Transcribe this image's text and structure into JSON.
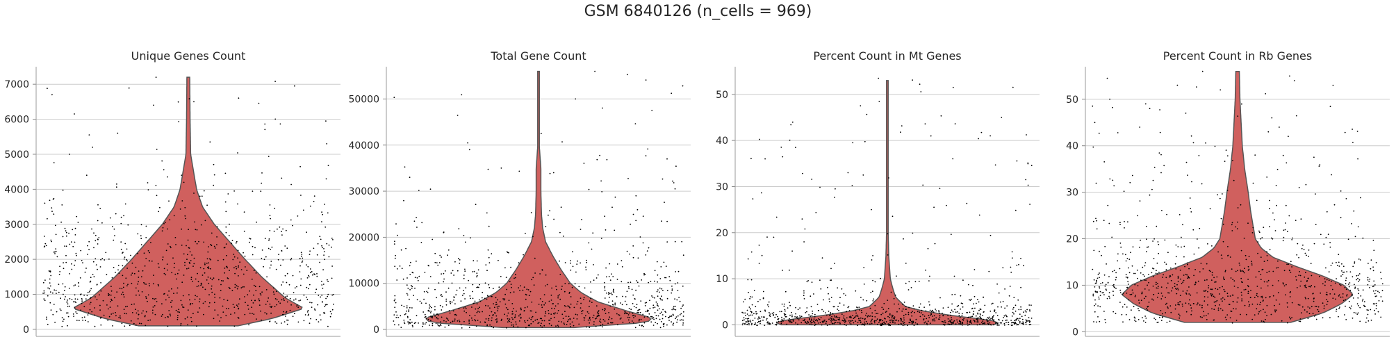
{
  "figure": {
    "suptitle": "GSM 6840126 (n_cells = 969)"
  },
  "colors": {
    "violin_fill": "#d0605e",
    "violin_edge": "#555555",
    "points": "#000000",
    "grid": "#cccccc",
    "text": "#262626"
  },
  "chart_data": [
    {
      "type": "violin",
      "title": "Unique Genes Count",
      "xlabel": "",
      "ylabel": "",
      "ylim": [
        -200,
        7500
      ],
      "yticks": [
        0,
        1000,
        2000,
        3000,
        4000,
        5000,
        6000,
        7000
      ],
      "grid": true,
      "n_points": 969,
      "observed_range": [
        100,
        7200
      ],
      "density_profile": [
        [
          100,
          0.42
        ],
        [
          300,
          0.7
        ],
        [
          600,
          0.98
        ],
        [
          900,
          0.82
        ],
        [
          1500,
          0.62
        ],
        [
          2000,
          0.48
        ],
        [
          2500,
          0.35
        ],
        [
          3000,
          0.22
        ],
        [
          3500,
          0.12
        ],
        [
          4000,
          0.07
        ],
        [
          5000,
          0.02
        ],
        [
          6000,
          0.015
        ],
        [
          7200,
          0.012
        ]
      ],
      "outliers": [
        6950,
        6700,
        6500,
        6400,
        6150,
        5950,
        5600,
        5350,
        5300,
        5200,
        7200,
        5000
      ]
    },
    {
      "type": "violin",
      "title": "Total Gene Count",
      "xlabel": "",
      "ylabel": "",
      "ylim": [
        -1500,
        57000
      ],
      "yticks": [
        0,
        10000,
        20000,
        30000,
        40000,
        50000
      ],
      "grid": true,
      "n_points": 969,
      "observed_range": [
        400,
        56000
      ],
      "density_profile": [
        [
          400,
          0.3
        ],
        [
          1500,
          0.92
        ],
        [
          2500,
          0.96
        ],
        [
          4000,
          0.75
        ],
        [
          6000,
          0.5
        ],
        [
          8000,
          0.36
        ],
        [
          10000,
          0.27
        ],
        [
          13000,
          0.19
        ],
        [
          16000,
          0.12
        ],
        [
          19000,
          0.06
        ],
        [
          22000,
          0.035
        ],
        [
          25000,
          0.025
        ],
        [
          30000,
          0.02
        ],
        [
          35000,
          0.02
        ],
        [
          40000,
          0.006
        ],
        [
          56000,
          0.005
        ]
      ],
      "outliers": [
        56000,
        50000,
        47500,
        42500,
        39000,
        35000,
        34000,
        33000
      ]
    },
    {
      "type": "violin",
      "title": "Percent Count in Mt Genes",
      "xlabel": "",
      "ylabel": "",
      "ylim": [
        -2.5,
        56
      ],
      "yticks": [
        0,
        10,
        20,
        30,
        40,
        50
      ],
      "grid": true,
      "n_points": 969,
      "observed_range": [
        0,
        53
      ],
      "density_profile": [
        [
          0,
          0.9
        ],
        [
          0.5,
          0.94
        ],
        [
          1,
          0.88
        ],
        [
          2,
          0.55
        ],
        [
          3,
          0.3
        ],
        [
          4,
          0.15
        ],
        [
          6,
          0.07
        ],
        [
          8,
          0.045
        ],
        [
          10,
          0.025
        ],
        [
          15,
          0.012
        ],
        [
          20,
          0.007
        ],
        [
          30,
          0.005
        ],
        [
          45,
          0.004
        ],
        [
          53,
          0.003
        ]
      ],
      "outliers": [
        53.5,
        51.5,
        45,
        41,
        39.5,
        38.5,
        36,
        33,
        32.5,
        31.5,
        29.5,
        25.5,
        25,
        19,
        18,
        16,
        15
      ]
    },
    {
      "type": "violin",
      "title": "Percent Count in Rb Genes",
      "xlabel": "",
      "ylabel": "",
      "ylim": [
        -1,
        57
      ],
      "yticks": [
        0,
        10,
        20,
        30,
        40,
        50
      ],
      "grid": true,
      "n_points": 969,
      "observed_range": [
        2,
        56
      ],
      "density_profile": [
        [
          2,
          0.45
        ],
        [
          4,
          0.72
        ],
        [
          6,
          0.88
        ],
        [
          8,
          0.98
        ],
        [
          10,
          0.9
        ],
        [
          12,
          0.72
        ],
        [
          14,
          0.5
        ],
        [
          16,
          0.3
        ],
        [
          18,
          0.2
        ],
        [
          20,
          0.15
        ],
        [
          23,
          0.13
        ],
        [
          26,
          0.11
        ],
        [
          30,
          0.09
        ],
        [
          35,
          0.06
        ],
        [
          40,
          0.04
        ],
        [
          45,
          0.03
        ],
        [
          50,
          0.02
        ],
        [
          56,
          0.015
        ]
      ],
      "outliers": [
        56,
        55,
        54.5,
        54,
        53,
        52,
        50,
        49,
        48,
        47,
        46,
        45,
        44,
        43,
        42
      ]
    }
  ]
}
